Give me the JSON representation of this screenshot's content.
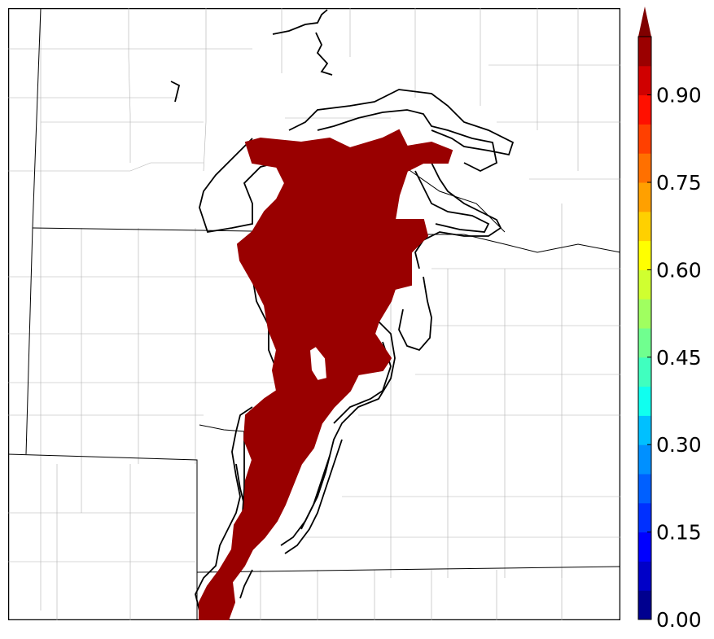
{
  "colorbar": {
    "ticks": [
      {
        "value": 0.0,
        "label": "0.00"
      },
      {
        "value": 0.15,
        "label": "0.15"
      },
      {
        "value": 0.3,
        "label": "0.30"
      },
      {
        "value": 0.45,
        "label": "0.45"
      },
      {
        "value": 0.6,
        "label": "0.60"
      },
      {
        "value": 0.75,
        "label": "0.75"
      },
      {
        "value": 0.9,
        "label": "0.90"
      }
    ],
    "range": [
      0.0,
      1.0
    ],
    "extend": "max",
    "colors": [
      "#00008f",
      "#0000c8",
      "#0000ff",
      "#0030ff",
      "#0060ff",
      "#0090ff",
      "#00c0ff",
      "#10ffef",
      "#40ffbf",
      "#70ff8f",
      "#a0ff60",
      "#d0ff30",
      "#ffff00",
      "#ffd000",
      "#ffa000",
      "#ff7000",
      "#ff4000",
      "#ff1000",
      "#d00000",
      "#9b0000"
    ],
    "extend_color": "#800000"
  },
  "map": {
    "filled_probability_color": "#990000",
    "outline_color": "#000000"
  }
}
